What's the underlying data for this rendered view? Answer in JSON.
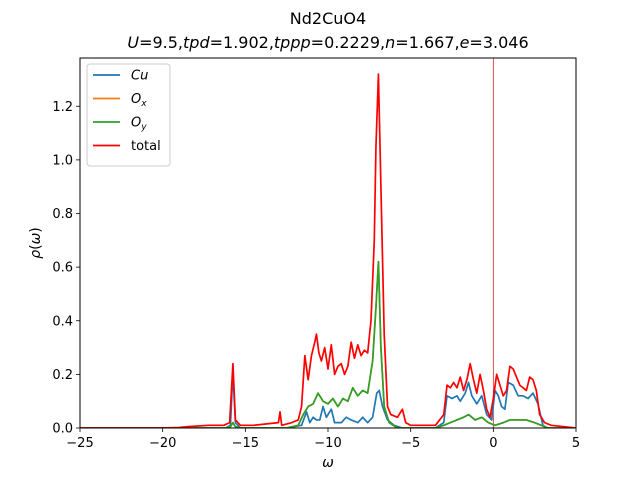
{
  "chart_data": {
    "type": "line",
    "title": "Nd2CuO4",
    "subtitle": "U=9.5,tpd=1.902,tppp=0.2229,n=1.667,e=3.046",
    "xlabel": "ω",
    "ylabel": "ρ(ω)",
    "xlim": [
      -25,
      5
    ],
    "ylim": [
      0,
      1.38
    ],
    "xticks": [
      -25,
      -20,
      -15,
      -10,
      -5,
      0,
      5
    ],
    "yticks": [
      0.0,
      0.2,
      0.4,
      0.6,
      0.8,
      1.0,
      1.2
    ],
    "xtick_labels": [
      "−25",
      "−20",
      "−15",
      "−10",
      "−5",
      "0",
      "5"
    ],
    "ytick_labels": [
      "0.0",
      "0.2",
      "0.4",
      "0.6",
      "0.8",
      "1.0",
      "1.2"
    ],
    "legend_position": "top-left",
    "vertical_line": {
      "x": 0,
      "color": "#d62728"
    },
    "series": [
      {
        "name": "Cu",
        "color": "#1f77b4",
        "points": [
          [
            -25,
            0
          ],
          [
            -16.2,
            0
          ],
          [
            -15.9,
            0.01
          ],
          [
            -15.75,
            0.21
          ],
          [
            -15.6,
            0.02
          ],
          [
            -15.3,
            0
          ],
          [
            -12.5,
            0
          ],
          [
            -11.6,
            0.01
          ],
          [
            -11.3,
            0.06
          ],
          [
            -11.1,
            0.02
          ],
          [
            -10.9,
            0.04
          ],
          [
            -10.7,
            0.03
          ],
          [
            -10.5,
            0.03
          ],
          [
            -10.3,
            0.08
          ],
          [
            -10.1,
            0.04
          ],
          [
            -9.8,
            0.07
          ],
          [
            -9.6,
            0.02
          ],
          [
            -9.2,
            0.02
          ],
          [
            -8.9,
            0.04
          ],
          [
            -8.6,
            0.03
          ],
          [
            -8.2,
            0.02
          ],
          [
            -7.9,
            0.04
          ],
          [
            -7.6,
            0.02
          ],
          [
            -7.3,
            0.04
          ],
          [
            -7.05,
            0.13
          ],
          [
            -6.9,
            0.14
          ],
          [
            -6.7,
            0.08
          ],
          [
            -6.4,
            0.03
          ],
          [
            -6.0,
            0.01
          ],
          [
            -5.5,
            0
          ],
          [
            -3.5,
            0
          ],
          [
            -3.0,
            0.02
          ],
          [
            -2.8,
            0.12
          ],
          [
            -2.5,
            0.11
          ],
          [
            -2.2,
            0.12
          ],
          [
            -2.0,
            0.1
          ],
          [
            -1.7,
            0.13
          ],
          [
            -1.5,
            0.17
          ],
          [
            -1.3,
            0.12
          ],
          [
            -1.0,
            0.09
          ],
          [
            -0.7,
            0.12
          ],
          [
            -0.4,
            0.05
          ],
          [
            -0.1,
            0.03
          ],
          [
            0.1,
            0.14
          ],
          [
            0.3,
            0.12
          ],
          [
            0.5,
            0.08
          ],
          [
            0.7,
            0.07
          ],
          [
            0.9,
            0.17
          ],
          [
            1.2,
            0.16
          ],
          [
            1.5,
            0.12
          ],
          [
            1.8,
            0.12
          ],
          [
            2.1,
            0.11
          ],
          [
            2.4,
            0.13
          ],
          [
            2.7,
            0.09
          ],
          [
            3.0,
            0.01
          ],
          [
            3.3,
            0
          ],
          [
            5,
            0
          ]
        ]
      },
      {
        "name": "Ox",
        "color": "#ff7f0e",
        "points": [
          [
            -25,
            0
          ],
          [
            -16.2,
            0
          ],
          [
            -15.9,
            0.005
          ],
          [
            -15.75,
            0.02
          ],
          [
            -15.6,
            0.005
          ],
          [
            -15.3,
            0
          ],
          [
            -12.5,
            0
          ],
          [
            -11.8,
            0.01
          ],
          [
            -11.5,
            0.05
          ],
          [
            -11.2,
            0.08
          ],
          [
            -10.9,
            0.09
          ],
          [
            -10.6,
            0.13
          ],
          [
            -10.3,
            0.1
          ],
          [
            -10.0,
            0.09
          ],
          [
            -9.7,
            0.11
          ],
          [
            -9.4,
            0.08
          ],
          [
            -9.1,
            0.11
          ],
          [
            -8.8,
            0.1
          ],
          [
            -8.5,
            0.15
          ],
          [
            -8.2,
            0.12
          ],
          [
            -7.9,
            0.14
          ],
          [
            -7.6,
            0.13
          ],
          [
            -7.3,
            0.25
          ],
          [
            -7.1,
            0.45
          ],
          [
            -6.95,
            0.62
          ],
          [
            -6.8,
            0.3
          ],
          [
            -6.6,
            0.08
          ],
          [
            -6.3,
            0.02
          ],
          [
            -5.8,
            0
          ],
          [
            -3.5,
            0
          ],
          [
            -3.0,
            0.01
          ],
          [
            -2.6,
            0.02
          ],
          [
            -2.2,
            0.03
          ],
          [
            -1.8,
            0.04
          ],
          [
            -1.5,
            0.05
          ],
          [
            -1.1,
            0.03
          ],
          [
            -0.7,
            0.04
          ],
          [
            -0.3,
            0.02
          ],
          [
            0.1,
            0.01
          ],
          [
            0.6,
            0.02
          ],
          [
            1.0,
            0.03
          ],
          [
            1.5,
            0.03
          ],
          [
            2.0,
            0.03
          ],
          [
            2.5,
            0.02
          ],
          [
            2.9,
            0.01
          ],
          [
            3.3,
            0
          ],
          [
            5,
            0
          ]
        ]
      },
      {
        "name": "Oy",
        "color": "#2ca02c",
        "points": [
          [
            -25,
            0
          ],
          [
            -16.2,
            0
          ],
          [
            -15.9,
            0.005
          ],
          [
            -15.75,
            0.02
          ],
          [
            -15.6,
            0.005
          ],
          [
            -15.3,
            0
          ],
          [
            -12.5,
            0
          ],
          [
            -11.8,
            0.01
          ],
          [
            -11.5,
            0.05
          ],
          [
            -11.2,
            0.08
          ],
          [
            -10.9,
            0.09
          ],
          [
            -10.6,
            0.13
          ],
          [
            -10.3,
            0.1
          ],
          [
            -10.0,
            0.09
          ],
          [
            -9.7,
            0.11
          ],
          [
            -9.4,
            0.08
          ],
          [
            -9.1,
            0.11
          ],
          [
            -8.8,
            0.1
          ],
          [
            -8.5,
            0.15
          ],
          [
            -8.2,
            0.12
          ],
          [
            -7.9,
            0.14
          ],
          [
            -7.6,
            0.13
          ],
          [
            -7.3,
            0.25
          ],
          [
            -7.1,
            0.45
          ],
          [
            -6.95,
            0.62
          ],
          [
            -6.8,
            0.3
          ],
          [
            -6.6,
            0.08
          ],
          [
            -6.3,
            0.02
          ],
          [
            -5.8,
            0
          ],
          [
            -3.5,
            0
          ],
          [
            -3.0,
            0.01
          ],
          [
            -2.6,
            0.02
          ],
          [
            -2.2,
            0.03
          ],
          [
            -1.8,
            0.04
          ],
          [
            -1.5,
            0.05
          ],
          [
            -1.1,
            0.03
          ],
          [
            -0.7,
            0.04
          ],
          [
            -0.3,
            0.02
          ],
          [
            0.1,
            0.01
          ],
          [
            0.6,
            0.02
          ],
          [
            1.0,
            0.03
          ],
          [
            1.5,
            0.03
          ],
          [
            2.0,
            0.03
          ],
          [
            2.5,
            0.02
          ],
          [
            2.9,
            0.01
          ],
          [
            3.3,
            0
          ],
          [
            5,
            0
          ]
        ]
      },
      {
        "name": "total",
        "color": "#ff0000",
        "points": [
          [
            -25,
            0
          ],
          [
            -20,
            0
          ],
          [
            -19,
            0.002
          ],
          [
            -18.5,
            0.005
          ],
          [
            -17.2,
            0.01
          ],
          [
            -16.3,
            0.01
          ],
          [
            -15.95,
            0.02
          ],
          [
            -15.75,
            0.24
          ],
          [
            -15.6,
            0.03
          ],
          [
            -15.3,
            0.01
          ],
          [
            -14.5,
            0.01
          ],
          [
            -13.0,
            0.02
          ],
          [
            -12.9,
            0.06
          ],
          [
            -12.8,
            0.01
          ],
          [
            -12.2,
            0.02
          ],
          [
            -11.8,
            0.03
          ],
          [
            -11.6,
            0.08
          ],
          [
            -11.4,
            0.27
          ],
          [
            -11.2,
            0.18
          ],
          [
            -11.0,
            0.27
          ],
          [
            -10.8,
            0.32
          ],
          [
            -10.7,
            0.35
          ],
          [
            -10.55,
            0.28
          ],
          [
            -10.4,
            0.25
          ],
          [
            -10.2,
            0.3
          ],
          [
            -10.0,
            0.22
          ],
          [
            -9.8,
            0.31
          ],
          [
            -9.6,
            0.2
          ],
          [
            -9.4,
            0.23
          ],
          [
            -9.2,
            0.24
          ],
          [
            -9.0,
            0.2
          ],
          [
            -8.8,
            0.23
          ],
          [
            -8.6,
            0.32
          ],
          [
            -8.4,
            0.26
          ],
          [
            -8.2,
            0.31
          ],
          [
            -8.0,
            0.27
          ],
          [
            -7.8,
            0.29
          ],
          [
            -7.6,
            0.28
          ],
          [
            -7.4,
            0.4
          ],
          [
            -7.2,
            0.7
          ],
          [
            -7.1,
            1.05
          ],
          [
            -6.95,
            1.32
          ],
          [
            -6.8,
            0.9
          ],
          [
            -6.6,
            0.35
          ],
          [
            -6.4,
            0.08
          ],
          [
            -6.2,
            0.05
          ],
          [
            -5.8,
            0.04
          ],
          [
            -5.5,
            0.07
          ],
          [
            -5.3,
            0.02
          ],
          [
            -5.0,
            0.01
          ],
          [
            -3.5,
            0.01
          ],
          [
            -3.0,
            0.05
          ],
          [
            -2.8,
            0.16
          ],
          [
            -2.6,
            0.15
          ],
          [
            -2.4,
            0.17
          ],
          [
            -2.2,
            0.15
          ],
          [
            -2.0,
            0.19
          ],
          [
            -1.8,
            0.14
          ],
          [
            -1.6,
            0.18
          ],
          [
            -1.4,
            0.24
          ],
          [
            -1.2,
            0.18
          ],
          [
            -1.0,
            0.13
          ],
          [
            -0.8,
            0.2
          ],
          [
            -0.6,
            0.14
          ],
          [
            -0.4,
            0.07
          ],
          [
            -0.2,
            0.04
          ],
          [
            0.0,
            0.11
          ],
          [
            0.2,
            0.2
          ],
          [
            0.4,
            0.16
          ],
          [
            0.6,
            0.12
          ],
          [
            0.8,
            0.14
          ],
          [
            1.0,
            0.23
          ],
          [
            1.2,
            0.22
          ],
          [
            1.4,
            0.19
          ],
          [
            1.6,
            0.16
          ],
          [
            1.8,
            0.15
          ],
          [
            2.0,
            0.14
          ],
          [
            2.2,
            0.19
          ],
          [
            2.4,
            0.18
          ],
          [
            2.6,
            0.14
          ],
          [
            2.8,
            0.05
          ],
          [
            3.1,
            0.02
          ],
          [
            3.5,
            0.01
          ],
          [
            5,
            0
          ]
        ]
      }
    ]
  }
}
